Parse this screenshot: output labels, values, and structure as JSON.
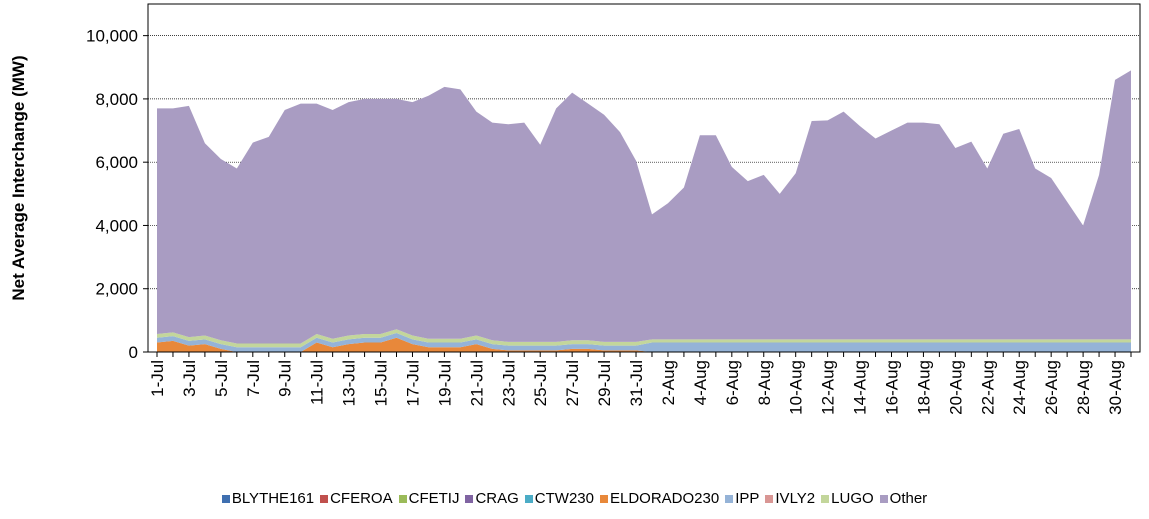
{
  "chart_data": {
    "type": "area",
    "stacked": true,
    "ylabel": "Net  Average  Interchange  (MW)",
    "categories": [
      "1-Jul",
      null,
      "3-Jul",
      null,
      "5-Jul",
      null,
      "7-Jul",
      null,
      "9-Jul",
      null,
      "11-Jul",
      null,
      "13-Jul",
      null,
      "15-Jul",
      null,
      "17-Jul",
      null,
      "19-Jul",
      null,
      "21-Jul",
      null,
      "23-Jul",
      null,
      "25-Jul",
      null,
      "27-Jul",
      null,
      "29-Jul",
      null,
      "31-Jul",
      null,
      "2-Aug",
      null,
      "4-Aug",
      null,
      "6-Aug",
      null,
      "8-Aug",
      null,
      "10-Aug",
      null,
      "12-Aug",
      null,
      "14-Aug",
      null,
      "16-Aug",
      null,
      "18-Aug",
      null,
      "20-Aug",
      null,
      "22-Aug",
      null,
      "24-Aug",
      null,
      "26-Aug",
      null,
      "28-Aug",
      null,
      "30-Aug",
      null
    ],
    "series": [
      {
        "name": "BLYTHE161",
        "color": "#3f6fb0",
        "values": [
          0,
          0,
          0,
          0,
          0,
          0,
          0,
          0,
          0,
          0,
          0,
          0,
          0,
          0,
          0,
          0,
          0,
          0,
          0,
          0,
          0,
          0,
          0,
          0,
          0,
          0,
          0,
          0,
          0,
          0,
          0,
          0,
          0,
          0,
          0,
          0,
          0,
          0,
          0,
          0,
          0,
          0,
          0,
          0,
          0,
          0,
          0,
          0,
          0,
          0,
          0,
          0,
          0,
          0,
          0,
          0,
          0,
          0,
          0,
          0,
          0,
          0
        ]
      },
      {
        "name": "CFEROA",
        "color": "#c0504d",
        "values": [
          0,
          0,
          0,
          0,
          0,
          0,
          0,
          0,
          0,
          0,
          0,
          0,
          0,
          0,
          0,
          0,
          0,
          0,
          0,
          0,
          0,
          0,
          0,
          0,
          0,
          0,
          0,
          0,
          0,
          0,
          0,
          0,
          0,
          0,
          0,
          0,
          0,
          0,
          0,
          0,
          0,
          0,
          0,
          0,
          0,
          0,
          0,
          0,
          0,
          0,
          0,
          0,
          0,
          0,
          0,
          0,
          0,
          0,
          0,
          0,
          0,
          0
        ]
      },
      {
        "name": "CFETIJ",
        "color": "#9bbb59",
        "values": [
          0,
          0,
          0,
          0,
          0,
          0,
          0,
          0,
          0,
          0,
          0,
          0,
          0,
          0,
          0,
          0,
          0,
          0,
          0,
          0,
          0,
          0,
          0,
          0,
          0,
          0,
          0,
          0,
          0,
          0,
          0,
          0,
          0,
          0,
          0,
          0,
          0,
          0,
          0,
          0,
          0,
          0,
          0,
          0,
          0,
          0,
          0,
          0,
          0,
          0,
          0,
          0,
          0,
          0,
          0,
          0,
          0,
          0,
          0,
          0,
          0,
          0
        ]
      },
      {
        "name": "CRAG",
        "color": "#8064a2",
        "values": [
          0,
          0,
          0,
          0,
          0,
          0,
          0,
          0,
          0,
          0,
          0,
          0,
          0,
          0,
          0,
          0,
          0,
          0,
          0,
          0,
          0,
          0,
          0,
          0,
          0,
          0,
          0,
          0,
          0,
          0,
          0,
          0,
          0,
          0,
          0,
          0,
          0,
          0,
          0,
          0,
          0,
          0,
          0,
          0,
          0,
          0,
          0,
          0,
          0,
          0,
          0,
          0,
          0,
          0,
          0,
          0,
          0,
          0,
          0,
          0,
          0,
          0
        ]
      },
      {
        "name": "CTW230",
        "color": "#4bacc6",
        "values": [
          0,
          0,
          0,
          0,
          0,
          0,
          0,
          0,
          0,
          0,
          0,
          0,
          0,
          0,
          0,
          0,
          0,
          0,
          0,
          0,
          0,
          0,
          0,
          0,
          0,
          0,
          0,
          0,
          0,
          0,
          0,
          0,
          0,
          0,
          0,
          0,
          0,
          0,
          0,
          0,
          0,
          0,
          0,
          0,
          0,
          0,
          0,
          0,
          0,
          0,
          0,
          0,
          0,
          0,
          0,
          0,
          0,
          0,
          0,
          0,
          0,
          0
        ]
      },
      {
        "name": "ELDORADO230",
        "color": "#e8883a",
        "values": [
          300,
          350,
          200,
          250,
          100,
          0,
          0,
          0,
          0,
          0,
          300,
          150,
          250,
          300,
          300,
          450,
          250,
          150,
          150,
          150,
          250,
          100,
          50,
          50,
          50,
          50,
          100,
          100,
          50,
          50,
          50,
          0,
          0,
          0,
          0,
          0,
          0,
          0,
          0,
          0,
          0,
          0,
          0,
          0,
          0,
          0,
          0,
          0,
          0,
          0,
          0,
          0,
          0,
          0,
          0,
          0,
          0,
          0,
          0,
          0,
          0,
          0
        ]
      },
      {
        "name": "IPP",
        "color": "#95b3d7",
        "values": [
          150,
          150,
          150,
          150,
          150,
          150,
          150,
          150,
          150,
          150,
          150,
          150,
          150,
          150,
          150,
          150,
          150,
          150,
          150,
          150,
          150,
          150,
          150,
          150,
          150,
          150,
          150,
          150,
          150,
          150,
          150,
          300,
          300,
          300,
          300,
          300,
          300,
          300,
          300,
          300,
          300,
          300,
          300,
          300,
          300,
          300,
          300,
          300,
          300,
          300,
          300,
          300,
          300,
          300,
          300,
          300,
          300,
          300,
          300,
          300,
          300,
          300
        ]
      },
      {
        "name": "IVLY2",
        "color": "#d99694",
        "values": [
          0,
          0,
          0,
          0,
          0,
          0,
          0,
          0,
          0,
          0,
          0,
          0,
          0,
          0,
          0,
          0,
          0,
          0,
          0,
          0,
          0,
          0,
          0,
          0,
          0,
          0,
          0,
          0,
          0,
          0,
          0,
          0,
          0,
          0,
          0,
          0,
          0,
          0,
          0,
          0,
          0,
          0,
          0,
          0,
          0,
          0,
          0,
          0,
          0,
          0,
          0,
          0,
          0,
          0,
          0,
          0,
          0,
          0,
          0,
          0,
          0,
          0
        ]
      },
      {
        "name": "LUGO",
        "color": "#c3d69b",
        "values": [
          120,
          120,
          120,
          120,
          120,
          120,
          120,
          120,
          120,
          120,
          120,
          120,
          120,
          120,
          120,
          120,
          120,
          120,
          120,
          120,
          120,
          120,
          120,
          120,
          120,
          120,
          120,
          120,
          120,
          120,
          120,
          100,
          100,
          100,
          100,
          100,
          100,
          100,
          100,
          100,
          100,
          100,
          100,
          100,
          100,
          100,
          100,
          100,
          100,
          100,
          100,
          100,
          100,
          100,
          100,
          100,
          100,
          100,
          100,
          100,
          100,
          100
        ]
      },
      {
        "name": "Other",
        "color": "#a99cc2",
        "values": [
          7130,
          7080,
          7310,
          6080,
          5730,
          5530,
          6350,
          6530,
          7380,
          7580,
          7280,
          7230,
          7380,
          7430,
          7430,
          7280,
          7380,
          7680,
          7960,
          7880,
          7080,
          6880,
          6880,
          6930,
          6230,
          7380,
          7830,
          7480,
          7180,
          6630,
          5730,
          3950,
          4300,
          4800,
          6450,
          6450,
          5450,
          5000,
          5200,
          4600,
          5250,
          6900,
          6920,
          7200,
          6750,
          6350,
          6600,
          6850,
          6850,
          6800,
          6050,
          6250,
          5400,
          6500,
          6650,
          5400,
          5100,
          4350,
          3600,
          5200,
          8200,
          8500
        ]
      }
    ],
    "ylim": [
      0,
      11000
    ],
    "yticks": [
      0,
      {
        "value": 2000,
        "label": "2,000"
      },
      {
        "value": 4000,
        "label": "4,000"
      },
      {
        "value": 6000,
        "label": "6,000"
      },
      {
        "value": 8000,
        "label": "8,000"
      },
      {
        "value": 10000,
        "label": "10,000"
      }
    ],
    "grid": true,
    "legend": "bottom"
  }
}
